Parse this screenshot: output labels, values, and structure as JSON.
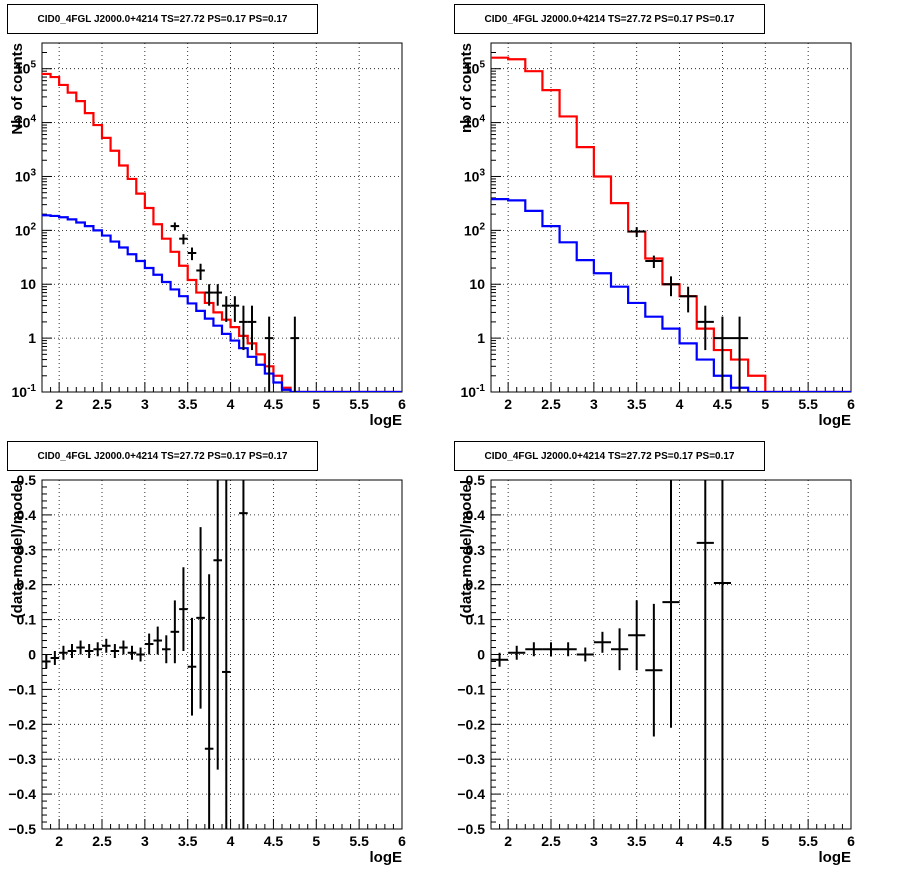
{
  "chart_data": [
    {
      "type": "line",
      "subtype": "histogram-step",
      "title": "CID0_4FGL J2000.0+4214 TS=27.72 PS=0.17 PS=0.17",
      "xlabel": "logE",
      "ylabel": "Nb of counts",
      "xlim": [
        1.8,
        6
      ],
      "ylim": [
        0.1,
        300000
      ],
      "y_scale": "log",
      "grid": true,
      "x_ticks": [
        "2",
        "2.5",
        "3",
        "3.5",
        "4",
        "4.5",
        "5",
        "5.5",
        "6"
      ],
      "y_ticks": [
        "10^-1",
        "1",
        "10",
        "10^2",
        "10^3",
        "10^4",
        "10^5"
      ],
      "edges": [
        1.8,
        1.9,
        2.0,
        2.1,
        2.2,
        2.3,
        2.4,
        2.5,
        2.6,
        2.7,
        2.8,
        2.9,
        3.0,
        3.1,
        3.2,
        3.3,
        3.4,
        3.5,
        3.6,
        3.7,
        3.8,
        3.9,
        4.0,
        4.1,
        4.2,
        4.3,
        4.4,
        4.5,
        4.6,
        4.7,
        4.8,
        4.9,
        5.0,
        5.1,
        5.2,
        5.3,
        5.4,
        5.5,
        5.6,
        5.7,
        5.8,
        5.9,
        6.0
      ],
      "series": [
        {
          "name": "",
          "color": "#ff0000",
          "values": [
            80000,
            70000,
            50000,
            36000,
            25000,
            15000,
            9000,
            5200,
            3000,
            1600,
            900,
            480,
            260,
            130,
            70,
            40,
            22,
            12,
            7,
            4.5,
            3,
            2.2,
            1.6,
            1.1,
            0.8,
            0.5,
            0.3,
            0.2,
            0.12,
            0.1,
            0.1,
            0.1,
            0.1,
            0.1,
            0.1,
            0.1,
            0.1,
            0.1,
            0.1,
            0.1,
            0.1,
            0.1
          ]
        },
        {
          "name": "",
          "color": "#0000ff",
          "values": [
            190,
            185,
            175,
            160,
            140,
            120,
            100,
            80,
            62,
            48,
            36,
            27,
            20,
            15,
            11,
            8,
            6,
            4.4,
            3.2,
            2.3,
            1.7,
            1.2,
            0.9,
            0.65,
            0.45,
            0.32,
            0.22,
            0.15,
            0.11,
            0.1,
            0.1,
            0.1,
            0.1,
            0.1,
            0.1,
            0.1,
            0.1,
            0.1,
            0.1,
            0.1,
            0.1,
            0.1
          ]
        }
      ],
      "data_points": [
        {
          "x": 3.35,
          "y": 120,
          "xerr": 0.05,
          "ylo": 100,
          "yhi": 140
        },
        {
          "x": 3.45,
          "y": 70,
          "xerr": 0.05,
          "ylo": 55,
          "yhi": 85
        },
        {
          "x": 3.55,
          "y": 38,
          "xerr": 0.05,
          "ylo": 28,
          "yhi": 48
        },
        {
          "x": 3.65,
          "y": 18,
          "xerr": 0.05,
          "ylo": 12,
          "yhi": 24
        },
        {
          "x": 3.75,
          "y": 7,
          "xerr": 0.05,
          "ylo": 4,
          "yhi": 10
        },
        {
          "x": 3.85,
          "y": 7,
          "xerr": 0.05,
          "ylo": 4,
          "yhi": 10
        },
        {
          "x": 3.95,
          "y": 4,
          "xerr": 0.05,
          "ylo": 2,
          "yhi": 6
        },
        {
          "x": 4.05,
          "y": 4,
          "xerr": 0.05,
          "ylo": 2,
          "yhi": 6
        },
        {
          "x": 4.15,
          "y": 2,
          "xerr": 0.05,
          "ylo": 0.6,
          "yhi": 4
        },
        {
          "x": 4.25,
          "y": 2,
          "xerr": 0.05,
          "ylo": 0.6,
          "yhi": 4
        },
        {
          "x": 4.45,
          "y": 1,
          "xerr": 0.05,
          "ylo": 0.1,
          "yhi": 2.5
        },
        {
          "x": 4.75,
          "y": 1,
          "xerr": 0.05,
          "ylo": 0.1,
          "yhi": 2.5
        }
      ]
    },
    {
      "type": "line",
      "subtype": "histogram-step",
      "title": "CID0_4FGL J2000.0+4214 TS=27.72 PS=0.17 PS=0.17",
      "xlabel": "logE",
      "ylabel": "nb of counts",
      "xlim": [
        1.8,
        6
      ],
      "ylim": [
        0.1,
        300000
      ],
      "y_scale": "log",
      "grid": true,
      "x_ticks": [
        "2",
        "2.5",
        "3",
        "3.5",
        "4",
        "4.5",
        "5",
        "5.5",
        "6"
      ],
      "y_ticks": [
        "10^-1",
        "1",
        "10",
        "10^2",
        "10^3",
        "10^4",
        "10^5"
      ],
      "edges": [
        1.8,
        2.0,
        2.2,
        2.4,
        2.6,
        2.8,
        3.0,
        3.2,
        3.4,
        3.6,
        3.8,
        4.0,
        4.2,
        4.4,
        4.6,
        4.8,
        5.0,
        5.2,
        5.4,
        5.6,
        5.8,
        6.0
      ],
      "series": [
        {
          "name": "",
          "color": "#ff0000",
          "values": [
            160000,
            150000,
            90000,
            40000,
            13000,
            3500,
            1000,
            320,
            95,
            30,
            10,
            6,
            1.5,
            0.6,
            0.4,
            0.2,
            0.1,
            0.1,
            0.1,
            0.1,
            0.1
          ]
        },
        {
          "name": "",
          "color": "#0000ff",
          "values": [
            380,
            360,
            230,
            120,
            60,
            28,
            16,
            9,
            4.5,
            2.5,
            1.5,
            0.8,
            0.4,
            0.2,
            0.12,
            0.1,
            0.1,
            0.1,
            0.1,
            0.1,
            0.1
          ]
        }
      ],
      "data_points": [
        {
          "x": 3.5,
          "y": 95,
          "xerr": 0.1,
          "ylo": 75,
          "yhi": 115
        },
        {
          "x": 3.7,
          "y": 27,
          "xerr": 0.1,
          "ylo": 20,
          "yhi": 34
        },
        {
          "x": 3.9,
          "y": 10,
          "xerr": 0.1,
          "ylo": 6,
          "yhi": 14
        },
        {
          "x": 4.1,
          "y": 6,
          "xerr": 0.1,
          "ylo": 3,
          "yhi": 9
        },
        {
          "x": 4.3,
          "y": 2,
          "xerr": 0.1,
          "ylo": 0.6,
          "yhi": 4
        },
        {
          "x": 4.5,
          "y": 1,
          "xerr": 0.1,
          "ylo": 0.1,
          "yhi": 2.5
        },
        {
          "x": 4.7,
          "y": 1,
          "xerr": 0.1,
          "ylo": 0.1,
          "yhi": 2.5
        }
      ]
    },
    {
      "type": "scatter",
      "subtype": "error-bars",
      "title": "CID0_4FGL J2000.0+4214 TS=27.72 PS=0.17 PS=0.17",
      "xlabel": "logE",
      "ylabel": "(data-model)/model",
      "xlim": [
        1.8,
        6
      ],
      "ylim": [
        -0.5,
        0.5
      ],
      "grid": true,
      "x_ticks": [
        "2",
        "2.5",
        "3",
        "3.5",
        "4",
        "4.5",
        "5",
        "5.5",
        "6"
      ],
      "y_ticks": [
        "−0.5",
        "−0.4",
        "−0.3",
        "−0.2",
        "−0.1",
        "0",
        "0.1",
        "0.2",
        "0.3",
        "0.4",
        "0.5"
      ],
      "points": [
        {
          "x": 1.85,
          "y": -0.02,
          "xerr": 0.05,
          "yerr": 0.02
        },
        {
          "x": 1.95,
          "y": -0.01,
          "xerr": 0.05,
          "yerr": 0.02
        },
        {
          "x": 2.05,
          "y": 0.005,
          "xerr": 0.05,
          "yerr": 0.02
        },
        {
          "x": 2.15,
          "y": 0.01,
          "xerr": 0.05,
          "yerr": 0.02
        },
        {
          "x": 2.25,
          "y": 0.02,
          "xerr": 0.05,
          "yerr": 0.02
        },
        {
          "x": 2.35,
          "y": 0.01,
          "xerr": 0.05,
          "yerr": 0.02
        },
        {
          "x": 2.45,
          "y": 0.015,
          "xerr": 0.05,
          "yerr": 0.02
        },
        {
          "x": 2.55,
          "y": 0.025,
          "xerr": 0.05,
          "yerr": 0.02
        },
        {
          "x": 2.65,
          "y": 0.01,
          "xerr": 0.05,
          "yerr": 0.02
        },
        {
          "x": 2.75,
          "y": 0.02,
          "xerr": 0.05,
          "yerr": 0.02
        },
        {
          "x": 2.85,
          "y": 0.005,
          "xerr": 0.05,
          "yerr": 0.02
        },
        {
          "x": 2.95,
          "y": 0.0,
          "xerr": 0.05,
          "yerr": 0.02
        },
        {
          "x": 3.05,
          "y": 0.03,
          "xerr": 0.05,
          "yerr": 0.03
        },
        {
          "x": 3.15,
          "y": 0.04,
          "xerr": 0.05,
          "yerr": 0.04
        },
        {
          "x": 3.25,
          "y": 0.015,
          "xerr": 0.05,
          "yerr": 0.04
        },
        {
          "x": 3.35,
          "y": 0.065,
          "xerr": 0.05,
          "yerr": 0.09
        },
        {
          "x": 3.45,
          "y": 0.13,
          "xerr": 0.05,
          "yerr": 0.12
        },
        {
          "x": 3.55,
          "y": -0.035,
          "xerr": 0.05,
          "yerr": 0.14
        },
        {
          "x": 3.65,
          "y": 0.105,
          "xerr": 0.05,
          "yerr": 0.26
        },
        {
          "x": 3.75,
          "y": -0.27,
          "xerr": 0.05,
          "yerr": 0.5
        },
        {
          "x": 3.85,
          "y": 0.27,
          "xerr": 0.05,
          "yerr": 0.6
        },
        {
          "x": 3.95,
          "y": -0.05,
          "xerr": 0.05,
          "yerr": 0.6
        },
        {
          "x": 4.15,
          "y": 0.405,
          "xerr": 0.05,
          "yerr": 1.0
        }
      ]
    },
    {
      "type": "scatter",
      "subtype": "error-bars",
      "title": "CID0_4FGL J2000.0+4214 TS=27.72 PS=0.17 PS=0.17",
      "xlabel": "logE",
      "ylabel": "(data-model)/model",
      "xlim": [
        1.8,
        6
      ],
      "ylim": [
        -0.5,
        0.5
      ],
      "grid": true,
      "x_ticks": [
        "2",
        "2.5",
        "3",
        "3.5",
        "4",
        "4.5",
        "5",
        "5.5",
        "6"
      ],
      "y_ticks": [
        "−0.5",
        "−0.4",
        "−0.3",
        "−0.2",
        "−0.1",
        "0",
        "0.1",
        "0.2",
        "0.3",
        "0.4",
        "0.5"
      ],
      "points": [
        {
          "x": 1.9,
          "y": -0.015,
          "xerr": 0.1,
          "yerr": 0.02
        },
        {
          "x": 2.1,
          "y": 0.005,
          "xerr": 0.1,
          "yerr": 0.02
        },
        {
          "x": 2.3,
          "y": 0.015,
          "xerr": 0.1,
          "yerr": 0.02
        },
        {
          "x": 2.5,
          "y": 0.015,
          "xerr": 0.1,
          "yerr": 0.02
        },
        {
          "x": 2.7,
          "y": 0.015,
          "xerr": 0.1,
          "yerr": 0.02
        },
        {
          "x": 2.9,
          "y": 0.0,
          "xerr": 0.1,
          "yerr": 0.02
        },
        {
          "x": 3.1,
          "y": 0.035,
          "xerr": 0.1,
          "yerr": 0.03
        },
        {
          "x": 3.3,
          "y": 0.015,
          "xerr": 0.1,
          "yerr": 0.06
        },
        {
          "x": 3.5,
          "y": 0.055,
          "xerr": 0.1,
          "yerr": 0.1
        },
        {
          "x": 3.7,
          "y": -0.045,
          "xerr": 0.1,
          "yerr": 0.19
        },
        {
          "x": 3.9,
          "y": 0.15,
          "xerr": 0.1,
          "yerr": 0.36
        },
        {
          "x": 4.3,
          "y": 0.32,
          "xerr": 0.1,
          "yerr": 0.9
        },
        {
          "x": 4.5,
          "y": 0.205,
          "xerr": 0.1,
          "yerr": 0.9
        }
      ]
    }
  ]
}
